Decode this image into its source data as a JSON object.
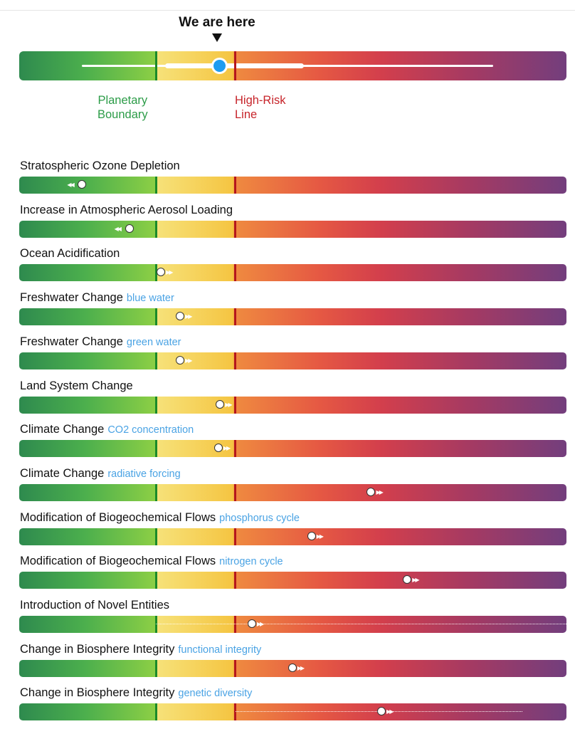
{
  "summary": {
    "title": "We are here",
    "planetary_boundary_label": "Planetary\nBoundary",
    "high_risk_label": "High-Risk\nLine",
    "position": 0.365
  },
  "chart_data": {
    "type": "bar",
    "scale": {
      "min": 0,
      "planetary_boundary": 0.25,
      "high_risk_line": 0.395,
      "max": 1
    },
    "zones": [
      {
        "name": "safe",
        "from": 0,
        "to": 0.25,
        "colors": [
          "#2e8a4e",
          "#8ccf45"
        ]
      },
      {
        "name": "increasing risk",
        "from": 0.25,
        "to": 0.395,
        "colors": [
          "#f6e27a",
          "#f5c542"
        ]
      },
      {
        "name": "high risk",
        "from": 0.395,
        "to": 1,
        "colors": [
          "#ef8a40",
          "#d33f4c",
          "#733e7d"
        ]
      }
    ],
    "colors": {
      "boundary_line": "#1b8a2a",
      "high_risk_line": "#b5171c",
      "marker": "#1e9cf0",
      "subtitle": "#4aa3e4"
    },
    "indicators": [
      {
        "title": "Stratospheric Ozone Depletion",
        "subtitle": "",
        "value": 0.115,
        "trend": "left"
      },
      {
        "title": "Increase in Atmospheric Aerosol Loading",
        "subtitle": "",
        "value": 0.201,
        "trend": "left"
      },
      {
        "title": "Ocean Acidification",
        "subtitle": "",
        "value": 0.259,
        "trend": "right"
      },
      {
        "title": "Freshwater Change",
        "subtitle": "blue water",
        "value": 0.294,
        "trend": "right"
      },
      {
        "title": "Freshwater Change",
        "subtitle": "green water",
        "value": 0.294,
        "trend": "right"
      },
      {
        "title": "Land System Change",
        "subtitle": "",
        "value": 0.367,
        "trend": "right"
      },
      {
        "title": "Climate Change",
        "subtitle": "CO2 concentration",
        "value": 0.364,
        "trend": "right"
      },
      {
        "title": "Climate Change",
        "subtitle": "radiative forcing",
        "value": 0.643,
        "trend": "right"
      },
      {
        "title": "Modification of Biogeochemical Flows",
        "subtitle": "phosphorus cycle",
        "value": 0.534,
        "trend": "right"
      },
      {
        "title": "Modification of Biogeochemical Flows",
        "subtitle": "nitrogen cycle",
        "value": 0.709,
        "trend": "right"
      },
      {
        "title": "Introduction of Novel Entities",
        "subtitle": "",
        "value": 0.425,
        "trend": "right",
        "range": [
          0.25,
          1.0
        ]
      },
      {
        "title": "Change in Biosphere Integrity",
        "subtitle": "functional integrity",
        "value": 0.499,
        "trend": "right"
      },
      {
        "title": "Change in Biosphere Integrity",
        "subtitle": "genetic diversity",
        "value": 0.662,
        "trend": "right",
        "range": [
          0.395,
          0.92
        ]
      }
    ]
  }
}
